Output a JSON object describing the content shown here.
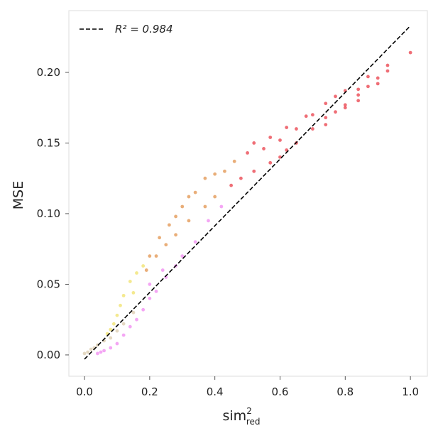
{
  "chart_data": {
    "type": "scatter",
    "x_label": {
      "base": "sim",
      "superscript": "2",
      "subscript": "red"
    },
    "y_label": "MSE",
    "xlim": [
      -0.048,
      1.052
    ],
    "ylim": [
      -0.0151,
      0.2437
    ],
    "xticks": [
      {
        "value": 0,
        "label": "0.0"
      },
      0.2,
      0.4,
      0.6,
      0.8,
      {
        "value": 1,
        "label": "1.0"
      }
    ],
    "yticks": [
      {
        "value": 0,
        "label": "0.00"
      },
      0.05,
      {
        "value": 0.1,
        "label": "0.10"
      },
      0.15,
      {
        "value": 0.2,
        "label": "0.20"
      }
    ],
    "legend_position": "upper left",
    "series": [
      {
        "color": "#d8c8a8",
        "x": [
          0.0,
          0.01,
          0.02,
          0.03,
          0.04,
          0.06,
          0.08,
          0.1,
          0.12,
          0.15
        ],
        "values": [
          0.001,
          0.002,
          0.004,
          0.005,
          0.007,
          0.01,
          0.012,
          0.017,
          0.022,
          0.03
        ]
      },
      {
        "color": "#f080f0",
        "x": [
          0.04,
          0.05,
          0.06,
          0.08,
          0.1,
          0.12,
          0.14,
          0.16,
          0.18,
          0.2,
          0.2,
          0.22,
          0.24,
          0.25,
          0.28,
          0.3,
          0.34,
          0.38,
          0.42
        ],
        "values": [
          0.001,
          0.002,
          0.003,
          0.005,
          0.008,
          0.014,
          0.02,
          0.025,
          0.032,
          0.04,
          0.05,
          0.045,
          0.06,
          0.055,
          0.063,
          0.07,
          0.08,
          0.095,
          0.105
        ]
      },
      {
        "color": "#f0e060",
        "x": [
          0.07,
          0.08,
          0.09,
          0.1,
          0.11,
          0.12,
          0.14,
          0.15,
          0.16,
          0.18
        ],
        "values": [
          0.015,
          0.018,
          0.022,
          0.028,
          0.035,
          0.042,
          0.052,
          0.044,
          0.058,
          0.063
        ]
      },
      {
        "color": "#e08c40",
        "x": [
          0.19,
          0.2,
          0.22,
          0.23,
          0.25,
          0.26,
          0.28,
          0.28,
          0.3,
          0.32,
          0.32,
          0.34,
          0.37,
          0.37,
          0.4,
          0.4,
          0.43,
          0.46
        ],
        "values": [
          0.06,
          0.07,
          0.07,
          0.083,
          0.078,
          0.092,
          0.085,
          0.098,
          0.105,
          0.095,
          0.112,
          0.115,
          0.105,
          0.125,
          0.112,
          0.128,
          0.13,
          0.137
        ]
      },
      {
        "color": "#e8303c",
        "x": [
          0.45,
          0.48,
          0.5,
          0.52,
          0.52,
          0.55,
          0.57,
          0.57,
          0.6,
          0.6,
          0.62,
          0.62,
          0.65,
          0.65,
          0.68,
          0.7,
          0.7,
          0.74,
          0.74,
          0.74,
          0.77,
          0.77,
          0.8,
          0.8,
          0.8,
          0.84,
          0.84,
          0.84,
          0.87,
          0.87,
          0.9,
          0.9,
          0.93,
          0.93,
          1.0
        ],
        "values": [
          0.12,
          0.125,
          0.143,
          0.13,
          0.15,
          0.146,
          0.136,
          0.154,
          0.14,
          0.152,
          0.145,
          0.161,
          0.15,
          0.16,
          0.169,
          0.16,
          0.17,
          0.163,
          0.168,
          0.178,
          0.172,
          0.183,
          0.175,
          0.177,
          0.187,
          0.18,
          0.184,
          0.188,
          0.19,
          0.197,
          0.192,
          0.196,
          0.201,
          0.205,
          0.214
        ]
      }
    ],
    "fit_line": {
      "type": "line",
      "name": "R² = 0.984",
      "color": "#000000",
      "x": [
        0,
        1
      ],
      "values": [
        -0.003,
        0.233
      ]
    }
  }
}
